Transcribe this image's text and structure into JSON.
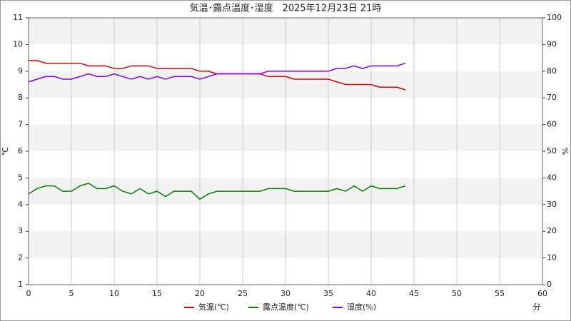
{
  "chart_data": {
    "type": "line",
    "title": "気温･露点温度･湿度　2025年12月23日 21時",
    "ylabel": "℃",
    "y2label": "%",
    "xlabel": "分",
    "x": [
      0,
      1,
      2,
      3,
      4,
      5,
      6,
      7,
      8,
      9,
      10,
      11,
      12,
      13,
      14,
      15,
      16,
      17,
      18,
      19,
      20,
      21,
      22,
      23,
      24,
      25,
      26,
      27,
      28,
      29,
      30,
      31,
      32,
      33,
      34,
      35,
      36,
      37,
      38,
      39,
      40,
      41,
      42,
      43,
      44
    ],
    "xlim": [
      0,
      60
    ],
    "xticks": [
      0,
      5,
      10,
      15,
      20,
      25,
      30,
      35,
      40,
      45,
      50,
      55,
      60
    ],
    "ylim": [
      1,
      11
    ],
    "yticks": [
      1,
      2,
      3,
      4,
      5,
      6,
      7,
      8,
      9,
      10,
      11
    ],
    "y2lim": [
      0,
      100
    ],
    "y2ticks": [
      0,
      10,
      20,
      30,
      40,
      50,
      60,
      70,
      80,
      90,
      100
    ],
    "grid": true,
    "legend": "bottom",
    "series": [
      {
        "name": "気温(℃)",
        "color": "#e00000",
        "values": [
          9.4,
          9.4,
          9.3,
          9.3,
          9.3,
          9.3,
          9.3,
          9.2,
          9.2,
          9.2,
          9.1,
          9.1,
          9.2,
          9.2,
          9.2,
          9.1,
          9.1,
          9.1,
          9.1,
          9.1,
          9.0,
          9.0,
          8.9,
          8.9,
          8.9,
          8.9,
          8.9,
          8.9,
          8.8,
          8.8,
          8.8,
          8.7,
          8.7,
          8.7,
          8.7,
          8.7,
          8.6,
          8.5,
          8.5,
          8.5,
          8.5,
          8.4,
          8.4,
          8.4,
          8.3
        ]
      },
      {
        "name": "露点温度(℃)",
        "color": "#008000",
        "values": [
          4.4,
          4.6,
          4.7,
          4.7,
          4.5,
          4.5,
          4.7,
          4.8,
          4.6,
          4.6,
          4.7,
          4.5,
          4.4,
          4.6,
          4.4,
          4.5,
          4.3,
          4.5,
          4.5,
          4.5,
          4.2,
          4.4,
          4.5,
          4.5,
          4.5,
          4.5,
          4.5,
          4.5,
          4.6,
          4.6,
          4.6,
          4.5,
          4.5,
          4.5,
          4.5,
          4.5,
          4.6,
          4.5,
          4.7,
          4.5,
          4.7,
          4.6,
          4.6,
          4.6,
          4.7
        ]
      },
      {
        "name": "湿度(%)",
        "color": "#8000ff",
        "axis": "y2",
        "values": [
          76,
          77,
          78,
          78,
          77,
          77,
          78,
          79,
          78,
          78,
          79,
          78,
          77,
          78,
          77,
          78,
          77,
          78,
          78,
          78,
          77,
          78,
          79,
          79,
          79,
          79,
          79,
          79,
          80,
          80,
          80,
          80,
          80,
          80,
          80,
          80,
          81,
          81,
          82,
          81,
          82,
          82,
          82,
          82,
          83
        ]
      }
    ]
  }
}
